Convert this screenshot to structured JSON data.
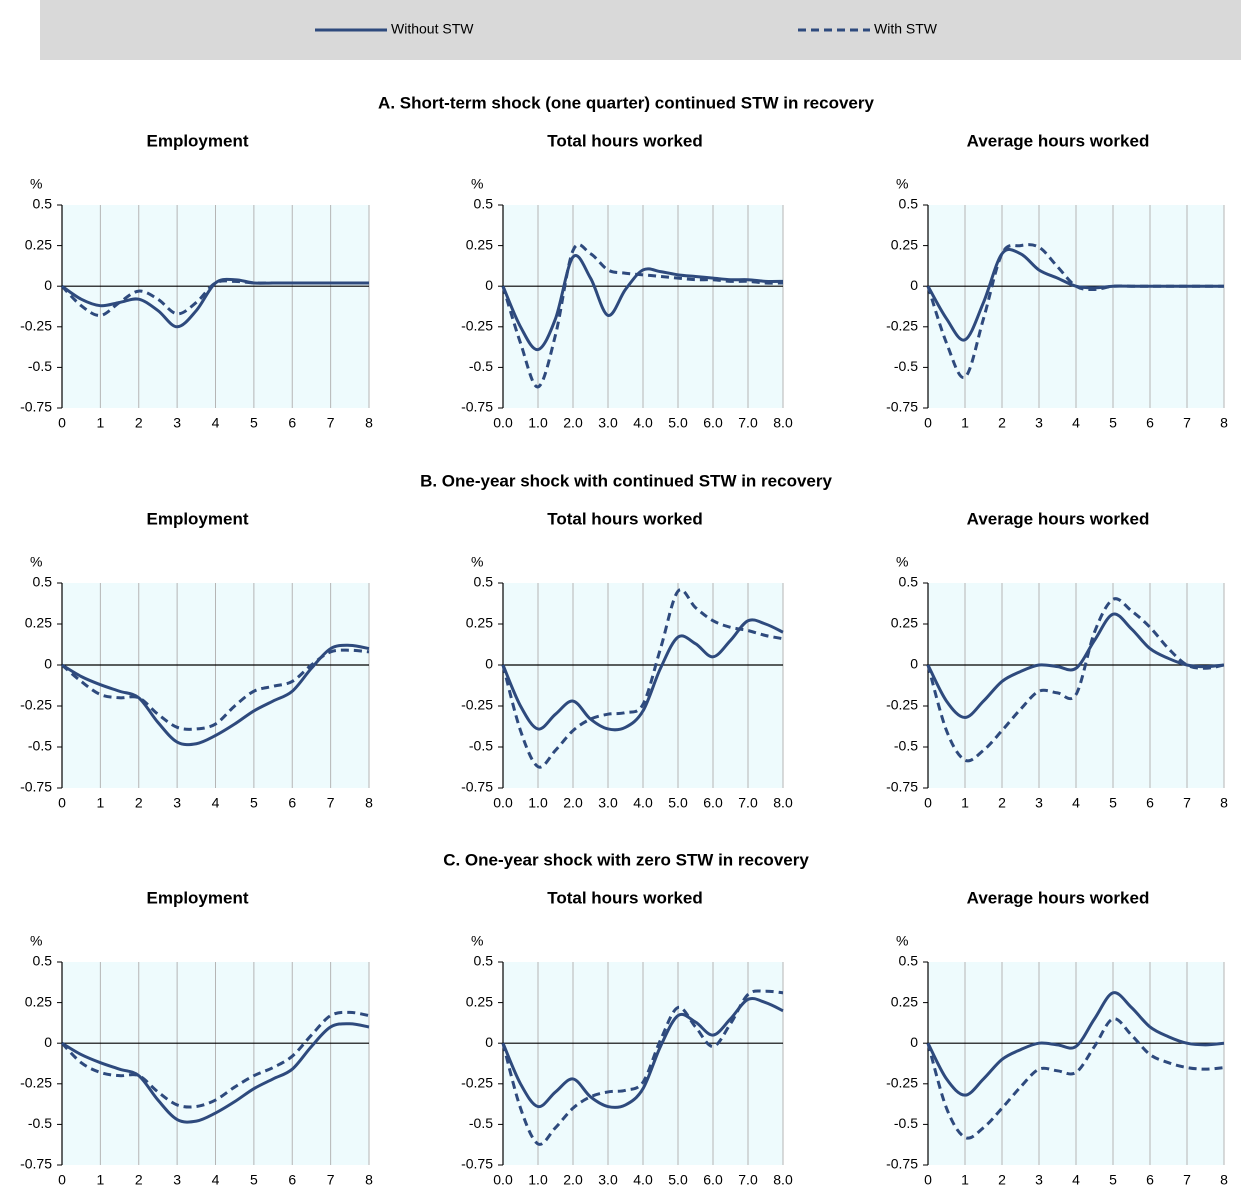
{
  "panel_titles": [
    "A. Short-term shock (one quarter) continued STW in recovery",
    "B. One-year shock with continued STW in recovery",
    "C. One-year shock with zero STW in recovery"
  ],
  "chart_data": [
    {
      "type": "line",
      "title": "Employment",
      "y_label": "%",
      "x": [
        0,
        0.5,
        1,
        1.5,
        2,
        2.5,
        3,
        3.5,
        4,
        4.5,
        5,
        5.5,
        6,
        6.5,
        7,
        7.5,
        8
      ],
      "xlim": [
        0,
        8
      ],
      "xticks": [
        0,
        1,
        2,
        3,
        4,
        5,
        6,
        7,
        8
      ],
      "ylim": [
        -0.75,
        0.5
      ],
      "yticks": [
        0.5,
        0.25,
        0,
        -0.25,
        -0.5,
        -0.75
      ],
      "series": [
        {
          "name": "Without STW",
          "color": "#2e4a7d",
          "style": "solid",
          "values": [
            0,
            -0.08,
            -0.12,
            -0.1,
            -0.08,
            -0.15,
            -0.25,
            -0.15,
            0.02,
            0.04,
            0.02,
            0.02,
            0.02,
            0.02,
            0.02,
            0.02,
            0.02
          ]
        },
        {
          "name": "With STW",
          "color": "#2e4a7d",
          "style": "dashed",
          "values": [
            0,
            -0.12,
            -0.18,
            -0.1,
            -0.03,
            -0.08,
            -0.17,
            -0.1,
            0.02,
            0.03,
            0.02,
            0.02,
            0.02,
            0.02,
            0.02,
            0.02,
            0.02
          ]
        }
      ]
    },
    {
      "type": "line",
      "title": "Total hours worked",
      "y_label": "%",
      "x": [
        0,
        0.5,
        1,
        1.5,
        2,
        2.5,
        3,
        3.5,
        4,
        4.5,
        5,
        5.5,
        6,
        6.5,
        7,
        7.5,
        8
      ],
      "xlim": [
        0,
        8
      ],
      "xticks": [
        {
          "value": 0,
          "label": "0.0"
        },
        {
          "value": 1,
          "label": "1.0"
        },
        {
          "value": 2,
          "label": "2.0"
        },
        {
          "value": 3,
          "label": "3.0"
        },
        {
          "value": 4,
          "label": "4.0"
        },
        {
          "value": 5,
          "label": "5.0"
        },
        {
          "value": 6,
          "label": "6.0"
        },
        {
          "value": 7,
          "label": "7.0"
        },
        {
          "value": 8,
          "label": "8.0"
        }
      ],
      "ylim": [
        -0.75,
        0.5
      ],
      "yticks": [
        0.5,
        0.25,
        0,
        -0.25,
        -0.5,
        -0.75
      ],
      "series": [
        {
          "name": "Without STW",
          "color": "#2e4a7d",
          "style": "solid",
          "values": [
            0,
            -0.25,
            -0.39,
            -0.2,
            0.18,
            0.05,
            -0.18,
            -0.02,
            0.1,
            0.09,
            0.07,
            0.06,
            0.05,
            0.04,
            0.04,
            0.03,
            0.03
          ]
        },
        {
          "name": "With STW",
          "color": "#2e4a7d",
          "style": "dashed",
          "values": [
            0,
            -0.35,
            -0.62,
            -0.3,
            0.22,
            0.2,
            0.1,
            0.08,
            0.07,
            0.06,
            0.05,
            0.04,
            0.04,
            0.03,
            0.03,
            0.02,
            0.02
          ]
        }
      ]
    },
    {
      "type": "line",
      "title": "Average hours worked",
      "y_label": "%",
      "x": [
        0,
        0.5,
        1,
        1.5,
        2,
        2.5,
        3,
        3.5,
        4,
        4.5,
        5,
        5.5,
        6,
        6.5,
        7,
        7.5,
        8
      ],
      "xlim": [
        0,
        8
      ],
      "xticks": [
        0,
        1,
        2,
        3,
        4,
        5,
        6,
        7,
        8
      ],
      "ylim": [
        -0.75,
        0.5
      ],
      "yticks": [
        0.5,
        0.25,
        0,
        -0.25,
        -0.5,
        -0.75
      ],
      "series": [
        {
          "name": "Without STW",
          "color": "#2e4a7d",
          "style": "solid",
          "values": [
            0,
            -0.2,
            -0.33,
            -0.1,
            0.2,
            0.2,
            0.1,
            0.05,
            0,
            -0.01,
            0,
            0,
            0,
            0,
            0,
            0,
            0
          ]
        },
        {
          "name": "With STW",
          "color": "#2e4a7d",
          "style": "dashed",
          "values": [
            0,
            -0.35,
            -0.56,
            -0.2,
            0.2,
            0.25,
            0.24,
            0.12,
            0,
            -0.02,
            0,
            0,
            0,
            0,
            0,
            0,
            0
          ]
        }
      ]
    },
    {
      "type": "line",
      "title": "Employment",
      "y_label": "%",
      "x": [
        0,
        0.5,
        1,
        1.5,
        2,
        2.5,
        3,
        3.5,
        4,
        4.5,
        5,
        5.5,
        6,
        6.5,
        7,
        7.5,
        8
      ],
      "xlim": [
        0,
        8
      ],
      "xticks": [
        0,
        1,
        2,
        3,
        4,
        5,
        6,
        7,
        8
      ],
      "ylim": [
        -0.75,
        0.5
      ],
      "yticks": [
        0.5,
        0.25,
        0,
        -0.25,
        -0.5,
        -0.75
      ],
      "series": [
        {
          "name": "Without STW",
          "color": "#2e4a7d",
          "style": "solid",
          "values": [
            0,
            -0.07,
            -0.12,
            -0.16,
            -0.2,
            -0.35,
            -0.47,
            -0.48,
            -0.43,
            -0.36,
            -0.28,
            -0.22,
            -0.16,
            -0.02,
            0.1,
            0.12,
            0.1
          ]
        },
        {
          "name": "With STW",
          "color": "#2e4a7d",
          "style": "dashed",
          "values": [
            0,
            -0.1,
            -0.18,
            -0.2,
            -0.2,
            -0.3,
            -0.38,
            -0.39,
            -0.36,
            -0.25,
            -0.16,
            -0.13,
            -0.1,
            0,
            0.08,
            0.09,
            0.08
          ]
        }
      ]
    },
    {
      "type": "line",
      "title": "Total hours worked",
      "y_label": "%",
      "x": [
        0,
        0.5,
        1,
        1.5,
        2,
        2.5,
        3,
        3.5,
        4,
        4.5,
        5,
        5.5,
        6,
        6.5,
        7,
        7.5,
        8
      ],
      "xlim": [
        0,
        8
      ],
      "xticks": [
        {
          "value": 0,
          "label": "0.0"
        },
        {
          "value": 1,
          "label": "1.0"
        },
        {
          "value": 2,
          "label": "2.0"
        },
        {
          "value": 3,
          "label": "3.0"
        },
        {
          "value": 4,
          "label": "4.0"
        },
        {
          "value": 5,
          "label": "5.0"
        },
        {
          "value": 6,
          "label": "6.0"
        },
        {
          "value": 7,
          "label": "7.0"
        },
        {
          "value": 8,
          "label": "8.0"
        }
      ],
      "ylim": [
        -0.75,
        0.5
      ],
      "yticks": [
        0.5,
        0.25,
        0,
        -0.25,
        -0.5,
        -0.75
      ],
      "series": [
        {
          "name": "Without STW",
          "color": "#2e4a7d",
          "style": "solid",
          "values": [
            0,
            -0.25,
            -0.39,
            -0.3,
            -0.22,
            -0.33,
            -0.39,
            -0.38,
            -0.28,
            -0.02,
            0.17,
            0.13,
            0.05,
            0.15,
            0.27,
            0.25,
            0.2
          ]
        },
        {
          "name": "With STW",
          "color": "#2e4a7d",
          "style": "dashed",
          "values": [
            0,
            -0.4,
            -0.62,
            -0.52,
            -0.4,
            -0.33,
            -0.3,
            -0.29,
            -0.24,
            0.1,
            0.45,
            0.35,
            0.27,
            0.23,
            0.21,
            0.18,
            0.16
          ]
        }
      ]
    },
    {
      "type": "line",
      "title": "Average hours worked",
      "y_label": "%",
      "x": [
        0,
        0.5,
        1,
        1.5,
        2,
        2.5,
        3,
        3.5,
        4,
        4.5,
        5,
        5.5,
        6,
        6.5,
        7,
        7.5,
        8
      ],
      "xlim": [
        0,
        8
      ],
      "xticks": [
        0,
        1,
        2,
        3,
        4,
        5,
        6,
        7,
        8
      ],
      "ylim": [
        -0.75,
        0.5
      ],
      "yticks": [
        0.5,
        0.25,
        0,
        -0.25,
        -0.5,
        -0.75
      ],
      "series": [
        {
          "name": "Without STW",
          "color": "#2e4a7d",
          "style": "solid",
          "values": [
            0,
            -0.22,
            -0.32,
            -0.22,
            -0.1,
            -0.04,
            0,
            -0.01,
            -0.02,
            0.15,
            0.31,
            0.22,
            0.1,
            0.04,
            0,
            -0.01,
            0
          ]
        },
        {
          "name": "With STW",
          "color": "#2e4a7d",
          "style": "dashed",
          "values": [
            0,
            -0.4,
            -0.58,
            -0.52,
            -0.4,
            -0.27,
            -0.16,
            -0.17,
            -0.18,
            0.2,
            0.4,
            0.33,
            0.23,
            0.1,
            0,
            -0.02,
            0
          ]
        }
      ]
    },
    {
      "type": "line",
      "title": "Employment",
      "y_label": "%",
      "x": [
        0,
        0.5,
        1,
        1.5,
        2,
        2.5,
        3,
        3.5,
        4,
        4.5,
        5,
        5.5,
        6,
        6.5,
        7,
        7.5,
        8
      ],
      "xlim": [
        0,
        8
      ],
      "xticks": [
        0,
        1,
        2,
        3,
        4,
        5,
        6,
        7,
        8
      ],
      "ylim": [
        -0.75,
        0.5
      ],
      "yticks": [
        0.5,
        0.25,
        0,
        -0.25,
        -0.5,
        -0.75
      ],
      "series": [
        {
          "name": "Without STW",
          "color": "#2e4a7d",
          "style": "solid",
          "values": [
            0,
            -0.07,
            -0.12,
            -0.16,
            -0.2,
            -0.35,
            -0.47,
            -0.48,
            -0.43,
            -0.36,
            -0.28,
            -0.22,
            -0.16,
            -0.02,
            0.1,
            0.12,
            0.1
          ]
        },
        {
          "name": "With STW",
          "color": "#2e4a7d",
          "style": "dashed",
          "values": [
            0,
            -0.12,
            -0.18,
            -0.2,
            -0.2,
            -0.3,
            -0.38,
            -0.39,
            -0.35,
            -0.27,
            -0.2,
            -0.15,
            -0.08,
            0.05,
            0.17,
            0.19,
            0.17
          ]
        }
      ]
    },
    {
      "type": "line",
      "title": "Total hours worked",
      "y_label": "%",
      "x": [
        0,
        0.5,
        1,
        1.5,
        2,
        2.5,
        3,
        3.5,
        4,
        4.5,
        5,
        5.5,
        6,
        6.5,
        7,
        7.5,
        8
      ],
      "xlim": [
        0,
        8
      ],
      "xticks": [
        {
          "value": 0,
          "label": "0.0"
        },
        {
          "value": 1,
          "label": "1.0"
        },
        {
          "value": 2,
          "label": "2.0"
        },
        {
          "value": 3,
          "label": "3.0"
        },
        {
          "value": 4,
          "label": "4.0"
        },
        {
          "value": 5,
          "label": "5.0"
        },
        {
          "value": 6,
          "label": "6.0"
        },
        {
          "value": 7,
          "label": "7.0"
        },
        {
          "value": 8,
          "label": "8.0"
        }
      ],
      "ylim": [
        -0.75,
        0.5
      ],
      "yticks": [
        0.5,
        0.25,
        0,
        -0.25,
        -0.5,
        -0.75
      ],
      "series": [
        {
          "name": "Without STW",
          "color": "#2e4a7d",
          "style": "solid",
          "values": [
            0,
            -0.25,
            -0.39,
            -0.3,
            -0.22,
            -0.33,
            -0.39,
            -0.38,
            -0.28,
            -0.02,
            0.17,
            0.13,
            0.05,
            0.15,
            0.27,
            0.25,
            0.2
          ]
        },
        {
          "name": "With STW",
          "color": "#2e4a7d",
          "style": "dashed",
          "values": [
            0,
            -0.4,
            -0.62,
            -0.52,
            -0.4,
            -0.33,
            -0.3,
            -0.29,
            -0.24,
            0.02,
            0.22,
            0.1,
            -0.02,
            0.12,
            0.3,
            0.32,
            0.31
          ]
        }
      ]
    },
    {
      "type": "line",
      "title": "Average hours worked",
      "y_label": "%",
      "x": [
        0,
        0.5,
        1,
        1.5,
        2,
        2.5,
        3,
        3.5,
        4,
        4.5,
        5,
        5.5,
        6,
        6.5,
        7,
        7.5,
        8
      ],
      "xlim": [
        0,
        8
      ],
      "xticks": [
        0,
        1,
        2,
        3,
        4,
        5,
        6,
        7,
        8
      ],
      "ylim": [
        -0.75,
        0.5
      ],
      "yticks": [
        0.5,
        0.25,
        0,
        -0.25,
        -0.5,
        -0.75
      ],
      "series": [
        {
          "name": "Without STW",
          "color": "#2e4a7d",
          "style": "solid",
          "values": [
            0,
            -0.22,
            -0.32,
            -0.22,
            -0.1,
            -0.04,
            0,
            -0.01,
            -0.02,
            0.15,
            0.31,
            0.22,
            0.1,
            0.04,
            0,
            -0.01,
            0
          ]
        },
        {
          "name": "With STW",
          "color": "#2e4a7d",
          "style": "dashed",
          "values": [
            0,
            -0.4,
            -0.58,
            -0.52,
            -0.4,
            -0.27,
            -0.16,
            -0.17,
            -0.18,
            -0.02,
            0.15,
            0.05,
            -0.07,
            -0.12,
            -0.15,
            -0.16,
            -0.15
          ]
        }
      ]
    }
  ]
}
